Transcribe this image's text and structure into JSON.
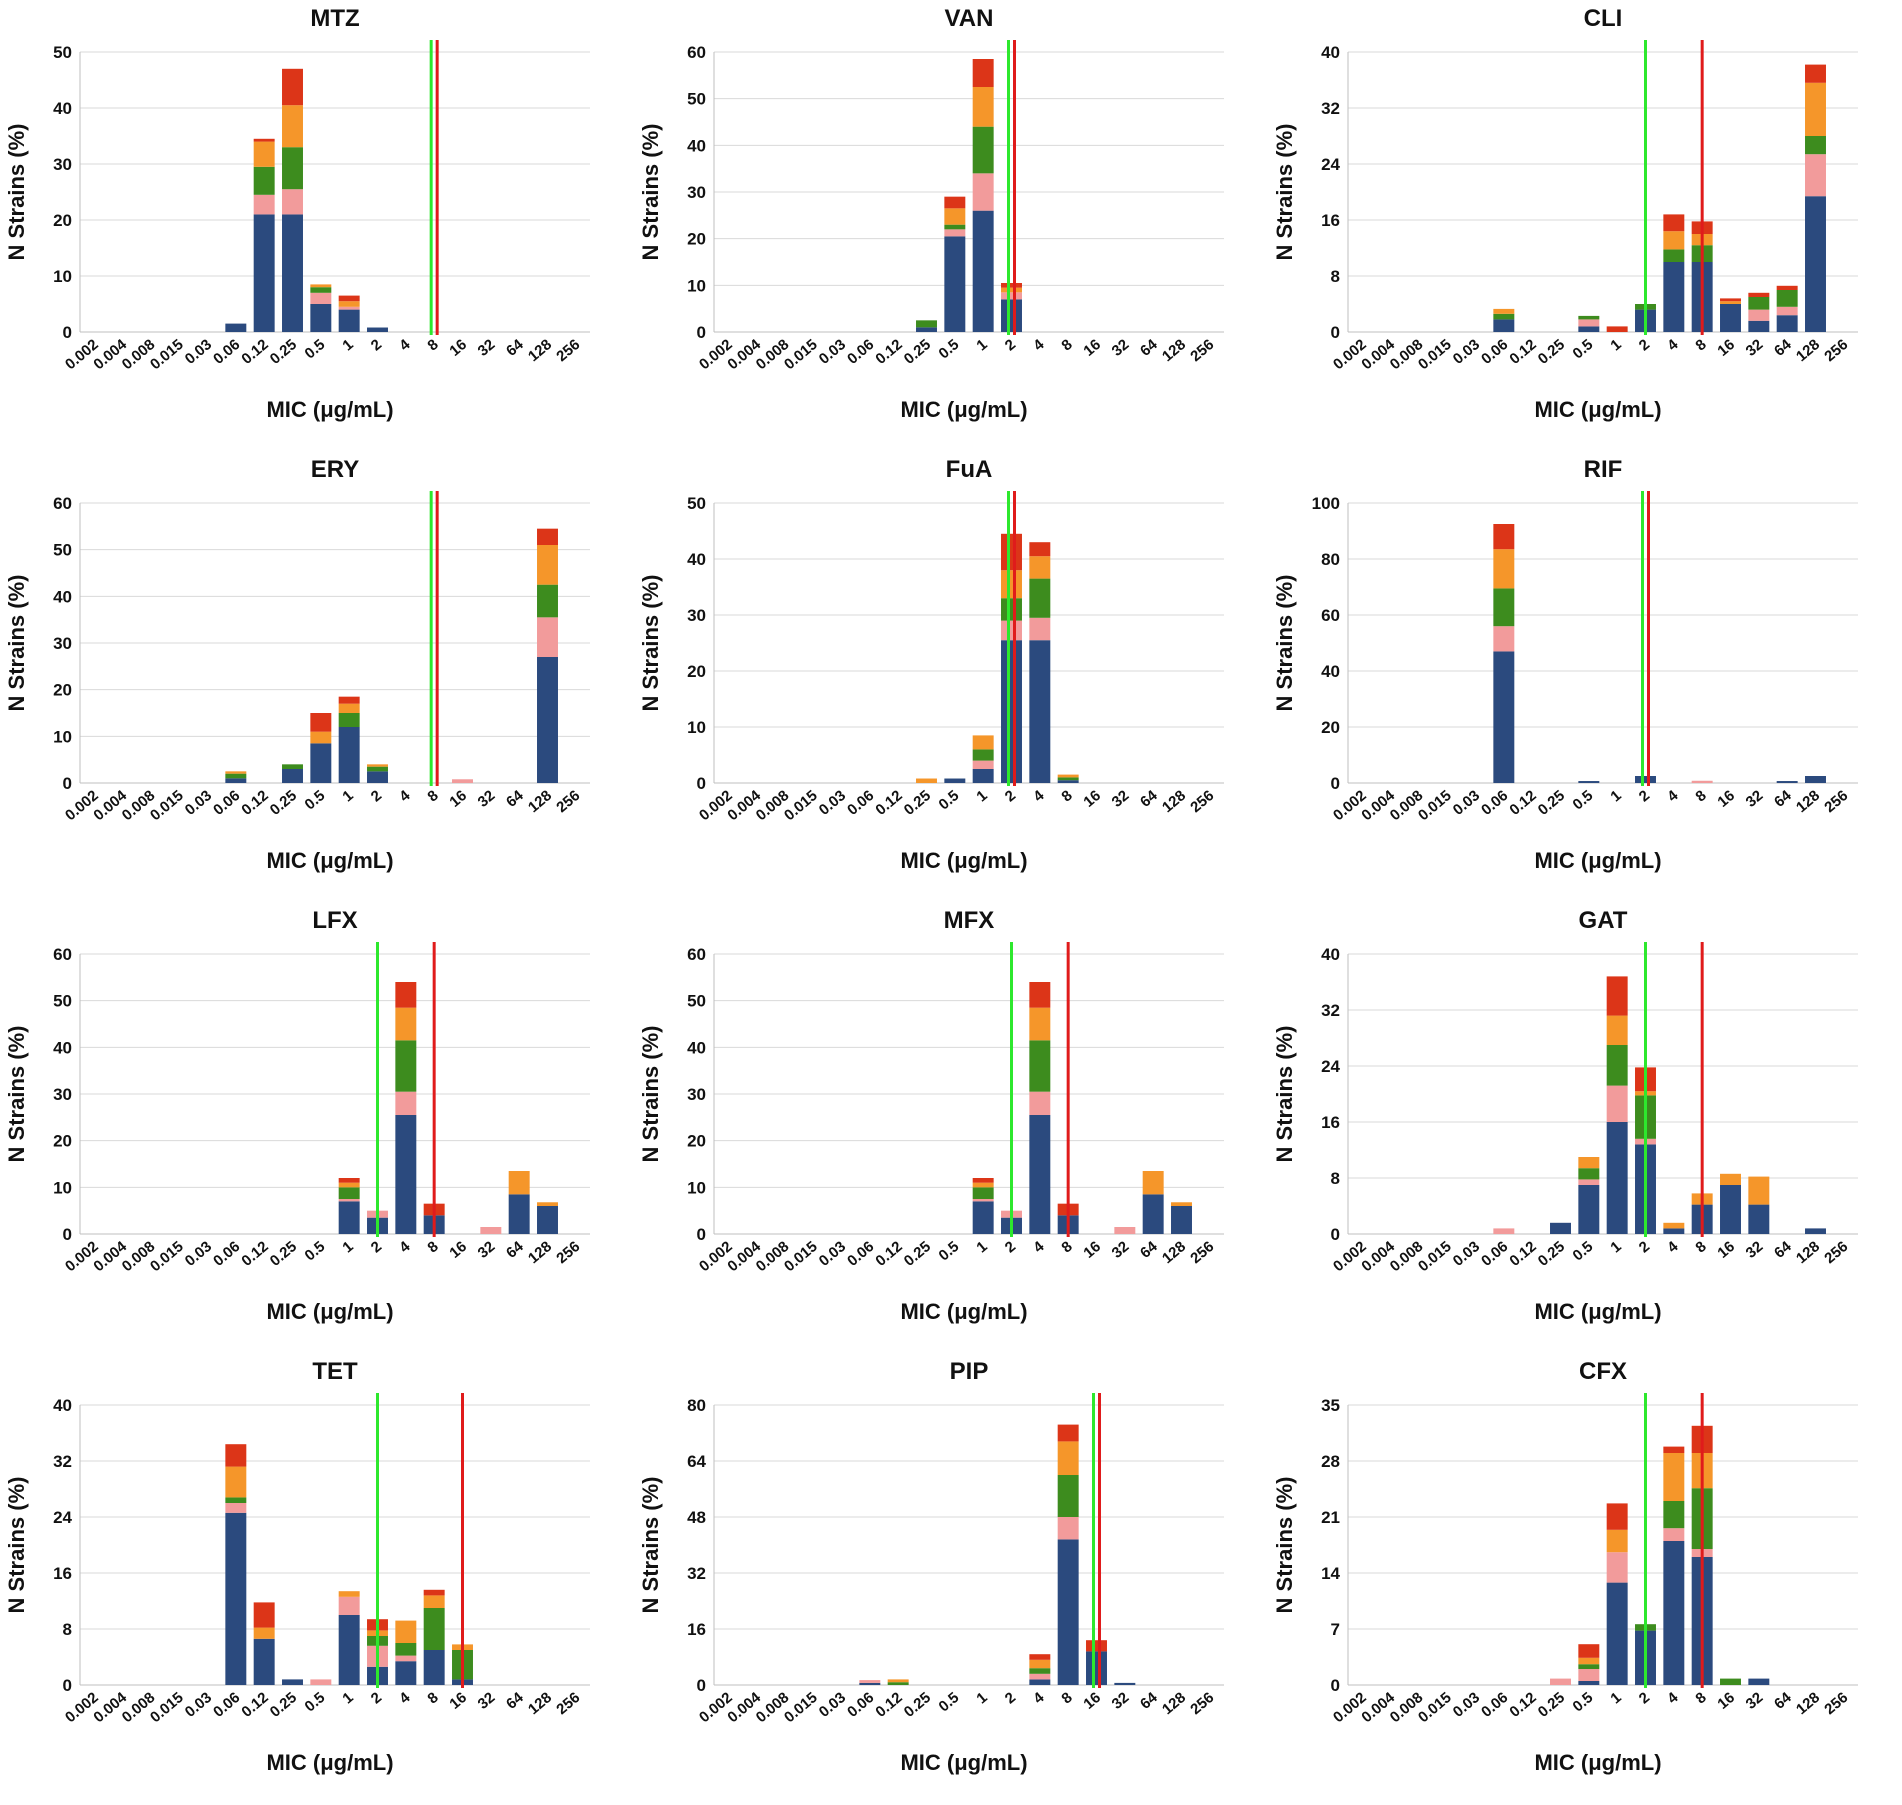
{
  "colors": {
    "segments": [
      "#2b4a7e",
      "#f29b9b",
      "#3d8c1e",
      "#f5962a",
      "#dc3518"
    ],
    "ecoff_line": "#2de82d",
    "breakpoint_line": "#e01b1b",
    "gridline": "#d9d9d9",
    "axis": "#bfbfbf"
  },
  "chart_data": [
    {
      "type": "bar",
      "stacked": true,
      "title": "MTZ",
      "xlabel": "MIC (μg/mL)",
      "ylabel": "N Strains (%)",
      "categories": [
        "0.002",
        "0.004",
        "0.008",
        "0.015",
        "0.03",
        "0.06",
        "0.12",
        "0.25",
        "0.5",
        "1",
        "2",
        "4",
        "8",
        "16",
        "32",
        "64",
        "128",
        "256"
      ],
      "ylim": [
        0,
        50
      ],
      "yticks": [
        "0",
        "10",
        "20",
        "30",
        "40",
        "50"
      ],
      "vlines": [
        {
          "at": "8",
          "color": "green"
        },
        {
          "at": "8",
          "color": "red"
        }
      ],
      "stacks": [
        [],
        [],
        [],
        [],
        [],
        [
          1.5
        ],
        [
          21,
          3.5,
          5,
          4.5,
          0.5
        ],
        [
          21,
          4.5,
          7.5,
          7.5,
          6.5
        ],
        [
          5,
          2,
          1,
          0.5,
          0
        ],
        [
          4,
          0.5,
          0,
          1,
          1
        ],
        [
          0.8
        ],
        [],
        [],
        [],
        [],
        [],
        [],
        []
      ]
    },
    {
      "type": "bar",
      "stacked": true,
      "title": "VAN",
      "xlabel": "MIC (μg/mL)",
      "ylabel": "N Strains (%)",
      "categories": [
        "0.002",
        "0.004",
        "0.008",
        "0.015",
        "0.03",
        "0.06",
        "0.12",
        "0.25",
        "0.5",
        "1",
        "2",
        "4",
        "8",
        "16",
        "32",
        "64",
        "128",
        "256"
      ],
      "ylim": [
        0,
        60
      ],
      "yticks": [
        "0",
        "10",
        "20",
        "30",
        "40",
        "50",
        "60"
      ],
      "vlines": [
        {
          "at": "2",
          "color": "green"
        },
        {
          "at": "2",
          "color": "red"
        }
      ],
      "stacks": [
        [],
        [],
        [],
        [],
        [],
        [],
        [],
        [
          1,
          0,
          1.5,
          0,
          0
        ],
        [
          20.5,
          1.5,
          1,
          3.5,
          2.5
        ],
        [
          26,
          8,
          10,
          8.5,
          6
        ],
        [
          7,
          1.5,
          0,
          1,
          1
        ],
        [],
        [],
        [],
        [],
        [],
        [],
        []
      ]
    },
    {
      "type": "bar",
      "stacked": true,
      "title": "CLI",
      "xlabel": "MIC (μg/mL)",
      "ylabel": "N Strains (%)",
      "categories": [
        "0.002",
        "0.004",
        "0.008",
        "0.015",
        "0.03",
        "0.06",
        "0.12",
        "0.25",
        "0.5",
        "1",
        "2",
        "4",
        "8",
        "16",
        "32",
        "64",
        "128",
        "256"
      ],
      "ylim": [
        0,
        40
      ],
      "yticks": [
        "0",
        "8",
        "16",
        "24",
        "32",
        "40"
      ],
      "vlines": [
        {
          "at": "2",
          "color": "green"
        },
        {
          "at": "8",
          "color": "red"
        }
      ],
      "stacks": [
        [],
        [],
        [],
        [],
        [],
        [
          1.8,
          0,
          0.8,
          0.7,
          0
        ],
        [],
        [],
        [
          0.8,
          1,
          0.5,
          0,
          0
        ],
        [
          0,
          0,
          0,
          0,
          0.8
        ],
        [
          3.2,
          0,
          0.8,
          0,
          0
        ],
        [
          10,
          0,
          1.8,
          2.6,
          2.4
        ],
        [
          10,
          0,
          2.4,
          1.6,
          1.8
        ],
        [
          4,
          0,
          0,
          0.4,
          0.4
        ],
        [
          1.6,
          1.6,
          1.8,
          0,
          0.6
        ],
        [
          2.4,
          1.2,
          2.4,
          0,
          0.6
        ],
        [
          19.4,
          6,
          2.6,
          7.6,
          2.6
        ],
        []
      ]
    },
    {
      "type": "bar",
      "stacked": true,
      "title": "ERY",
      "xlabel": "MIC (μg/mL)",
      "ylabel": "N Strains (%)",
      "categories": [
        "0.002",
        "0.004",
        "0.008",
        "0.015",
        "0.03",
        "0.06",
        "0.12",
        "0.25",
        "0.5",
        "1",
        "2",
        "4",
        "8",
        "16",
        "32",
        "64",
        "128",
        "256"
      ],
      "ylim": [
        0,
        60
      ],
      "yticks": [
        "0",
        "10",
        "20",
        "30",
        "40",
        "50",
        "60"
      ],
      "vlines": [
        {
          "at": "8",
          "color": "green"
        },
        {
          "at": "8",
          "color": "red"
        }
      ],
      "stacks": [
        [],
        [],
        [],
        [],
        [],
        [
          1,
          0,
          1,
          0.5,
          0
        ],
        [],
        [
          3,
          0,
          1,
          0,
          0
        ],
        [
          8.5,
          0,
          0,
          2.5,
          4
        ],
        [
          12,
          0,
          3,
          2,
          1.5
        ],
        [
          2.5,
          0,
          1,
          0.5,
          0
        ],
        [],
        [],
        [
          0,
          0.8,
          0,
          0,
          0
        ],
        [],
        [],
        [
          27,
          8.5,
          7,
          8.5,
          3.5
        ],
        []
      ]
    },
    {
      "type": "bar",
      "stacked": true,
      "title": "FuA",
      "xlabel": "MIC (μg/mL)",
      "ylabel": "N Strains (%)",
      "categories": [
        "0.002",
        "0.004",
        "0.008",
        "0.015",
        "0.03",
        "0.06",
        "0.12",
        "0.25",
        "0.5",
        "1",
        "2",
        "4",
        "8",
        "16",
        "32",
        "64",
        "128",
        "256"
      ],
      "ylim": [
        0,
        50
      ],
      "yticks": [
        "0",
        "10",
        "20",
        "30",
        "40",
        "50"
      ],
      "vlines": [
        {
          "at": "2",
          "color": "green"
        },
        {
          "at": "2",
          "color": "red"
        }
      ],
      "stacks": [
        [],
        [],
        [],
        [],
        [],
        [],
        [],
        [
          0,
          0,
          0,
          0.8,
          0
        ],
        [
          0.8
        ],
        [
          2.5,
          1.5,
          2,
          2.5,
          0
        ],
        [
          25.5,
          3.5,
          4,
          5,
          6.5
        ],
        [
          25.5,
          4,
          7,
          4,
          2.5
        ],
        [
          0.5,
          0,
          0.5,
          0.5,
          0
        ],
        [],
        [],
        [],
        [],
        []
      ]
    },
    {
      "type": "bar",
      "stacked": true,
      "title": "RIF",
      "xlabel": "MIC (μg/mL)",
      "ylabel": "N Strains (%)",
      "categories": [
        "0.002",
        "0.004",
        "0.008",
        "0.015",
        "0.03",
        "0.06",
        "0.12",
        "0.25",
        "0.5",
        "1",
        "2",
        "4",
        "8",
        "16",
        "32",
        "64",
        "128",
        "256"
      ],
      "ylim": [
        0,
        100
      ],
      "yticks": [
        "0",
        "20",
        "40",
        "60",
        "80",
        "100"
      ],
      "vlines": [
        {
          "at": "2",
          "color": "green"
        },
        {
          "at": "2",
          "color": "red"
        }
      ],
      "stacks": [
        [],
        [],
        [],
        [],
        [],
        [
          47,
          9,
          13.5,
          14,
          9
        ],
        [],
        [],
        [
          0.7
        ],
        [],
        [
          2.5
        ],
        [],
        [
          0,
          0.8,
          0,
          0,
          0
        ],
        [],
        [],
        [
          0.7
        ],
        [
          2.5
        ],
        []
      ]
    },
    {
      "type": "bar",
      "stacked": true,
      "title": "LFX",
      "xlabel": "MIC (μg/mL)",
      "ylabel": "N Strains (%)",
      "categories": [
        "0.002",
        "0.004",
        "0.008",
        "0.015",
        "0.03",
        "0.06",
        "0.12",
        "0.25",
        "0.5",
        "1",
        "2",
        "4",
        "8",
        "16",
        "32",
        "64",
        "128",
        "256"
      ],
      "ylim": [
        0,
        60
      ],
      "yticks": [
        "0",
        "10",
        "20",
        "30",
        "40",
        "50",
        "60"
      ],
      "vlines": [
        {
          "at": "2",
          "color": "green"
        },
        {
          "at": "8",
          "color": "red"
        }
      ],
      "stacks": [
        [],
        [],
        [],
        [],
        [],
        [],
        [],
        [],
        [],
        [
          7,
          0.5,
          2.5,
          1,
          1
        ],
        [
          3.5,
          1.5,
          0,
          0,
          0
        ],
        [
          25.5,
          5,
          11,
          7,
          5.5
        ],
        [
          4,
          0,
          0,
          0,
          2.5
        ],
        [],
        [
          0,
          1.5,
          0,
          0,
          0
        ],
        [
          8.5,
          0,
          0,
          5,
          0
        ],
        [
          6,
          0,
          0,
          0.8,
          0
        ],
        []
      ]
    },
    {
      "type": "bar",
      "stacked": true,
      "title": "MFX",
      "xlabel": "MIC (μg/mL)",
      "ylabel": "N Strains (%)",
      "categories": [
        "0.002",
        "0.004",
        "0.008",
        "0.015",
        "0.03",
        "0.06",
        "0.12",
        "0.25",
        "0.5",
        "1",
        "2",
        "4",
        "8",
        "16",
        "32",
        "64",
        "128",
        "256"
      ],
      "ylim": [
        0,
        60
      ],
      "yticks": [
        "0",
        "10",
        "20",
        "30",
        "40",
        "50",
        "60"
      ],
      "vlines": [
        {
          "at": "2",
          "color": "green"
        },
        {
          "at": "8",
          "color": "red"
        }
      ],
      "stacks": [
        [],
        [],
        [],
        [],
        [],
        [],
        [],
        [],
        [],
        [
          7,
          0.5,
          2.5,
          1,
          1
        ],
        [
          3.5,
          1.5,
          0,
          0,
          0
        ],
        [
          25.5,
          5,
          11,
          7,
          5.5
        ],
        [
          4,
          0,
          0,
          0,
          2.5
        ],
        [],
        [
          0,
          1.5,
          0,
          0,
          0
        ],
        [
          8.5,
          0,
          0,
          5,
          0
        ],
        [
          6,
          0,
          0,
          0.8,
          0
        ],
        []
      ]
    },
    {
      "type": "bar",
      "stacked": true,
      "title": "GAT",
      "xlabel": "MIC (μg/mL)",
      "ylabel": "N Strains (%)",
      "categories": [
        "0.002",
        "0.004",
        "0.008",
        "0.015",
        "0.03",
        "0.06",
        "0.12",
        "0.25",
        "0.5",
        "1",
        "2",
        "4",
        "8",
        "16",
        "32",
        "64",
        "128",
        "256"
      ],
      "ylim": [
        0,
        40
      ],
      "yticks": [
        "0",
        "8",
        "16",
        "24",
        "32",
        "40"
      ],
      "vlines": [
        {
          "at": "2",
          "color": "green"
        },
        {
          "at": "8",
          "color": "red"
        }
      ],
      "stacks": [
        [],
        [],
        [],
        [],
        [],
        [
          0,
          0.8,
          0,
          0,
          0
        ],
        [],
        [
          1.6
        ],
        [
          7,
          0.8,
          1.6,
          1.6,
          0
        ],
        [
          16,
          5.2,
          5.8,
          4.2,
          5.6
        ],
        [
          12.8,
          0.8,
          6.2,
          0.6,
          3.4
        ],
        [
          0.8,
          0,
          0,
          0.8,
          0
        ],
        [
          4.2,
          0,
          0,
          1.6,
          0
        ],
        [
          7,
          0,
          0,
          1.6,
          0
        ],
        [
          4.2,
          0,
          0,
          4,
          0
        ],
        [],
        [
          0.8
        ],
        []
      ]
    },
    {
      "type": "bar",
      "stacked": true,
      "title": "TET",
      "xlabel": "MIC (μg/mL)",
      "ylabel": "N Strains (%)",
      "categories": [
        "0.002",
        "0.004",
        "0.008",
        "0.015",
        "0.03",
        "0.06",
        "0.12",
        "0.25",
        "0.5",
        "1",
        "2",
        "4",
        "8",
        "16",
        "32",
        "64",
        "128",
        "256"
      ],
      "ylim": [
        0,
        40
      ],
      "yticks": [
        "0",
        "8",
        "16",
        "24",
        "32",
        "40"
      ],
      "vlines": [
        {
          "at": "2",
          "color": "green"
        },
        {
          "at": "16",
          "color": "red"
        }
      ],
      "stacks": [
        [],
        [],
        [],
        [],
        [],
        [
          24.6,
          1.4,
          0.8,
          4.4,
          3.2
        ],
        [
          6.6,
          0,
          0,
          1.6,
          3.6
        ],
        [
          0.8
        ],
        [
          0,
          0.8,
          0,
          0,
          0
        ],
        [
          10,
          2.6,
          0,
          0.8,
          0
        ],
        [
          2.6,
          3,
          1.4,
          0.8,
          1.6
        ],
        [
          3.4,
          0.8,
          1.8,
          3.2,
          0
        ],
        [
          5,
          0,
          6,
          1.8,
          0.8
        ],
        [
          0.8,
          0,
          4.2,
          0.8,
          0
        ],
        [],
        [],
        [],
        []
      ]
    },
    {
      "type": "bar",
      "stacked": true,
      "title": "PIP",
      "xlabel": "MIC (μg/mL)",
      "ylabel": "N Strains (%)",
      "categories": [
        "0.002",
        "0.004",
        "0.008",
        "0.015",
        "0.03",
        "0.06",
        "0.12",
        "0.25",
        "0.5",
        "1",
        "2",
        "4",
        "8",
        "16",
        "32",
        "64",
        "128",
        "256"
      ],
      "ylim": [
        0,
        80
      ],
      "yticks": [
        "0",
        "16",
        "32",
        "48",
        "64",
        "80"
      ],
      "vlines": [
        {
          "at": "16",
          "color": "green"
        },
        {
          "at": "16",
          "color": "red"
        }
      ],
      "stacks": [
        [],
        [],
        [],
        [],
        [],
        [
          0.6,
          0.8,
          0,
          0,
          0
        ],
        [
          0,
          0,
          0.8,
          0.8,
          0
        ],
        [],
        [],
        [],
        [],
        [
          1.6,
          1.6,
          1.6,
          2.4,
          1.6
        ],
        [
          41.6,
          6.4,
          12,
          9.6,
          4.8
        ],
        [
          9.6,
          0,
          0,
          0,
          3.2
        ],
        [
          0.6
        ],
        [],
        [],
        []
      ]
    },
    {
      "type": "bar",
      "stacked": true,
      "title": "CFX",
      "xlabel": "MIC (μg/mL)",
      "ylabel": "N Strains (%)",
      "categories": [
        "0.002",
        "0.004",
        "0.008",
        "0.015",
        "0.03",
        "0.06",
        "0.12",
        "0.25",
        "0.5",
        "1",
        "2",
        "4",
        "8",
        "16",
        "32",
        "64",
        "128",
        "256"
      ],
      "ylim": [
        0,
        35
      ],
      "yticks": [
        "0",
        "7",
        "14",
        "21",
        "28",
        "35"
      ],
      "vlines": [
        {
          "at": "2",
          "color": "green"
        },
        {
          "at": "8",
          "color": "red"
        }
      ],
      "stacks": [
        [],
        [],
        [],
        [],
        [],
        [],
        [],
        [
          0,
          0.8,
          0,
          0,
          0
        ],
        [
          0.5,
          1.5,
          0.6,
          0.8,
          1.7
        ],
        [
          12.8,
          3.8,
          0,
          2.8,
          3.3
        ],
        [
          6.8,
          0,
          0.8,
          0,
          0
        ],
        [
          18,
          1.6,
          3.4,
          6,
          0.8
        ],
        [
          16,
          1,
          7.6,
          4.4,
          3.4
        ],
        [
          0,
          0,
          0.8,
          0,
          0
        ],
        [
          0.8
        ],
        [],
        [],
        []
      ]
    }
  ]
}
